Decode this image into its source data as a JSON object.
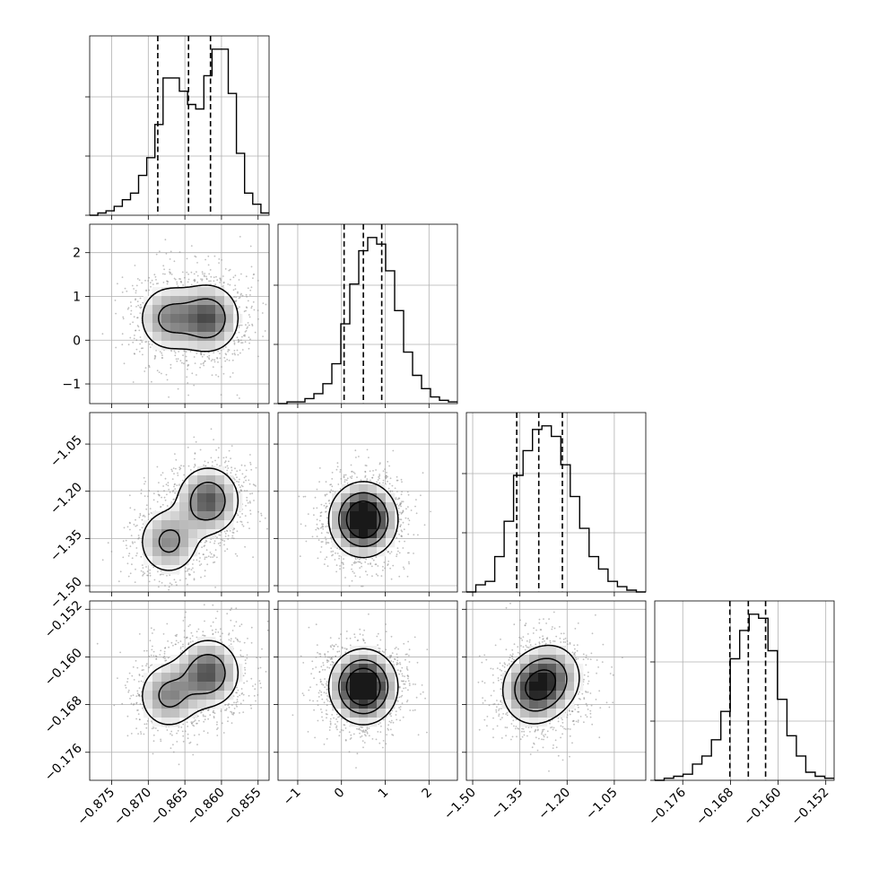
{
  "chart_data": {
    "type": "corner",
    "parameters": [
      {
        "index": 0,
        "range": [
          -0.878,
          -0.8535
        ],
        "ticks": [
          -0.875,
          -0.87,
          -0.865,
          -0.86,
          -0.855
        ],
        "tick_labels": [
          "−0.875",
          "−0.870",
          "−0.865",
          "−0.860",
          "−0.855"
        ],
        "quantiles": [
          -0.8687,
          -0.8645,
          -0.8615
        ]
      },
      {
        "index": 1,
        "range": [
          -1.45,
          2.65
        ],
        "ticks": [
          -1,
          0,
          1,
          2
        ],
        "tick_labels": [
          "−1",
          "0",
          "1",
          "2"
        ],
        "quantiles": [
          0.06,
          0.5,
          0.92
        ]
      },
      {
        "index": 2,
        "range": [
          -1.52,
          -0.95
        ],
        "ticks": [
          -1.5,
          -1.35,
          -1.2,
          -1.05
        ],
        "tick_labels": [
          "−1.50",
          "−1.35",
          "−1.20",
          "−1.05"
        ],
        "quantiles": [
          -1.36,
          -1.29,
          -1.215
        ]
      },
      {
        "index": 3,
        "range": [
          -0.1807,
          -0.1506
        ],
        "ticks": [
          -0.176,
          -0.168,
          -0.16,
          -0.152
        ],
        "tick_labels": [
          "−0.176",
          "−0.168",
          "−0.160",
          "−0.152"
        ],
        "quantiles": [
          -0.1681,
          -0.165,
          -0.1621
        ]
      }
    ],
    "histograms": [
      {
        "param": 0,
        "bin_range": [
          -0.878,
          -0.8535
        ],
        "counts": [
          0,
          1,
          2,
          4,
          7,
          10,
          18,
          26,
          41,
          62,
          62,
          56,
          50,
          48,
          63,
          75,
          75,
          55,
          28,
          10,
          5,
          1
        ]
      },
      {
        "param": 1,
        "bin_range": [
          -1.45,
          2.65
        ],
        "counts": [
          0,
          1,
          1,
          3,
          6,
          12,
          24,
          48,
          72,
          92,
          100,
          96,
          80,
          56,
          31,
          17,
          9,
          4,
          2,
          1
        ]
      },
      {
        "param": 2,
        "bin_range": [
          -1.52,
          -0.95
        ],
        "counts": [
          0,
          4,
          6,
          20,
          40,
          66,
          80,
          92,
          94,
          88,
          72,
          54,
          36,
          20,
          13,
          6,
          3,
          1,
          0
        ]
      },
      {
        "param": 3,
        "bin_range": [
          -0.1807,
          -0.1506
        ],
        "counts": [
          0,
          1,
          2,
          3,
          8,
          12,
          20,
          34,
          60,
          74,
          82,
          80,
          64,
          40,
          22,
          12,
          4,
          2,
          1
        ]
      }
    ],
    "joint_distributions": [
      {
        "x_param": 0,
        "y_param": 1,
        "components": [
          {
            "x": -0.8672,
            "y": 0.5,
            "weight": 0.42
          },
          {
            "x": -0.8618,
            "y": 0.5,
            "weight": 0.58
          }
        ]
      },
      {
        "x_param": 0,
        "y_param": 2,
        "components": [
          {
            "x": -0.8672,
            "y": -1.36,
            "weight": 0.42
          },
          {
            "x": -0.8618,
            "y": -1.23,
            "weight": 0.58
          }
        ]
      },
      {
        "x_param": 1,
        "y_param": 2,
        "components": [
          {
            "x": 0.5,
            "y": -1.29,
            "weight": 1.0
          }
        ]
      },
      {
        "x_param": 0,
        "y_param": 3,
        "components": [
          {
            "x": -0.8672,
            "y": -0.1665,
            "weight": 0.42
          },
          {
            "x": -0.8618,
            "y": -0.1627,
            "weight": 0.58
          }
        ]
      },
      {
        "x_param": 1,
        "y_param": 3,
        "components": [
          {
            "x": 0.5,
            "y": -0.165,
            "weight": 1.0
          }
        ]
      },
      {
        "x_param": 2,
        "y_param": 3,
        "components": [
          {
            "x": -1.31,
            "y": -0.1657,
            "weight": 0.55
          },
          {
            "x": -1.25,
            "y": -0.1633,
            "weight": 0.45
          }
        ]
      }
    ],
    "quantile_levels": [
      0.16,
      0.5,
      0.84
    ],
    "grid": true,
    "colors": {
      "points": "#8a8a8a",
      "contour": "#000000",
      "grid": "#b0b0b0"
    }
  }
}
